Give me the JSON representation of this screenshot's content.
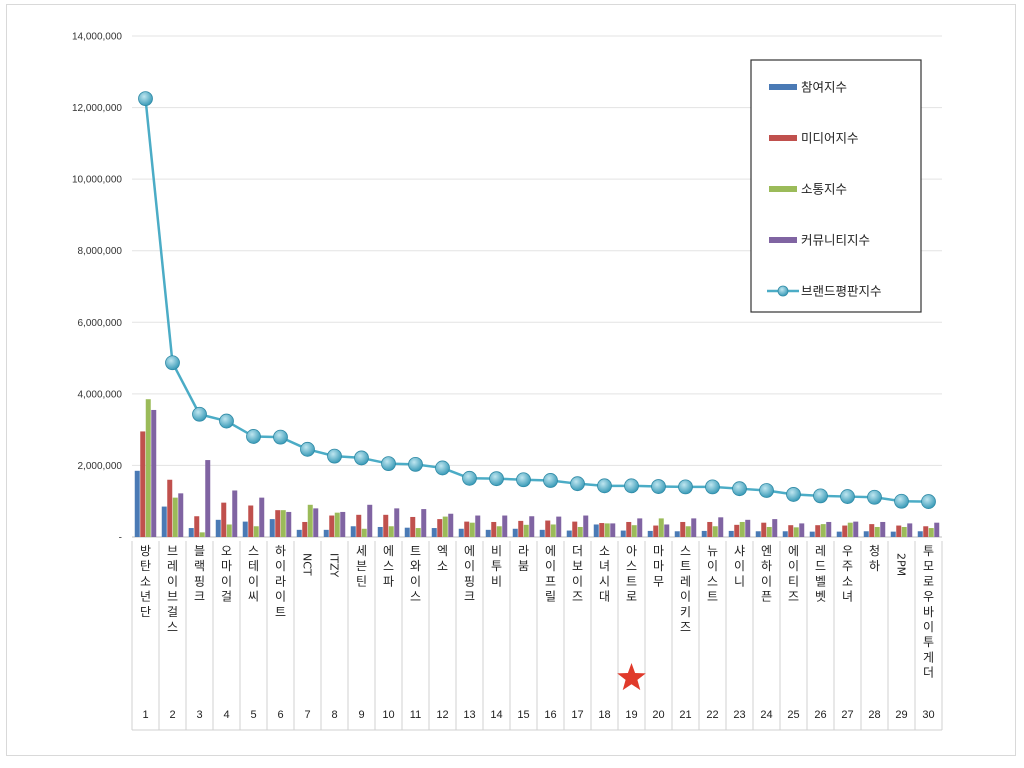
{
  "chart_data": {
    "type": "bar",
    "title": "",
    "xlabel": "",
    "ylabel": "",
    "ylim": [
      0,
      14000000
    ],
    "yticks": [
      0,
      2000000,
      4000000,
      6000000,
      8000000,
      10000000,
      12000000,
      14000000
    ],
    "ytick_labels": [
      "-",
      "2,000,000",
      "4,000,000",
      "6,000,000",
      "8,000,000",
      "10,000,000",
      "12,000,000",
      "14,000,000"
    ],
    "grid": true,
    "legend_position": "top-right",
    "categories": [
      "방탄소년단",
      "브레이브걸스",
      "블랙핑크",
      "오마이걸",
      "스테이씨",
      "하이라이트",
      "NCT",
      "ITZY",
      "세븐틴",
      "에스파",
      "트와이스",
      "엑소",
      "에이핑크",
      "비투비",
      "라붐",
      "에이프릴",
      "더보이즈",
      "소녀시대",
      "아스트로",
      "마마무",
      "스트레이키즈",
      "뉴이스트",
      "샤이니",
      "엔하이픈",
      "에이티즈",
      "레드벨벳",
      "우주소녀",
      "청하",
      "2PM",
      "투모로우바이투게더"
    ],
    "ranks": [
      "1",
      "2",
      "3",
      "4",
      "5",
      "6",
      "7",
      "8",
      "9",
      "10",
      "11",
      "12",
      "13",
      "14",
      "15",
      "16",
      "17",
      "18",
      "19",
      "20",
      "21",
      "22",
      "23",
      "24",
      "25",
      "26",
      "27",
      "28",
      "29",
      "30"
    ],
    "highlight_index": 18,
    "series": [
      {
        "name": "참여지수",
        "type": "bar",
        "color": "#4a7ab5",
        "values": [
          1850000,
          850000,
          250000,
          480000,
          430000,
          500000,
          200000,
          200000,
          300000,
          280000,
          260000,
          250000,
          230000,
          200000,
          230000,
          200000,
          180000,
          350000,
          180000,
          170000,
          160000,
          170000,
          170000,
          160000,
          160000,
          150000,
          150000,
          160000,
          150000,
          160000
        ]
      },
      {
        "name": "미디어지수",
        "type": "bar",
        "color": "#c0504d",
        "values": [
          2950000,
          1600000,
          580000,
          960000,
          880000,
          750000,
          420000,
          600000,
          620000,
          620000,
          560000,
          500000,
          430000,
          420000,
          450000,
          460000,
          430000,
          390000,
          420000,
          320000,
          420000,
          420000,
          340000,
          400000,
          330000,
          330000,
          320000,
          360000,
          320000,
          300000
        ]
      },
      {
        "name": "소통지수",
        "type": "bar",
        "color": "#9bbb59",
        "values": [
          3850000,
          1100000,
          130000,
          350000,
          300000,
          750000,
          900000,
          680000,
          230000,
          300000,
          250000,
          570000,
          400000,
          300000,
          340000,
          350000,
          280000,
          380000,
          330000,
          520000,
          300000,
          300000,
          420000,
          280000,
          270000,
          360000,
          400000,
          280000,
          280000,
          250000
        ]
      },
      {
        "name": "커뮤니티지수",
        "type": "bar",
        "color": "#8064a2",
        "values": [
          3550000,
          1220000,
          2150000,
          1300000,
          1100000,
          700000,
          800000,
          700000,
          900000,
          800000,
          780000,
          650000,
          600000,
          600000,
          580000,
          570000,
          600000,
          380000,
          520000,
          350000,
          520000,
          550000,
          480000,
          500000,
          380000,
          420000,
          430000,
          420000,
          380000,
          400000
        ]
      },
      {
        "name": "브랜드평판지수",
        "type": "line",
        "color": "#4bacc6",
        "values": [
          12250000,
          4870000,
          3430000,
          3240000,
          2810000,
          2790000,
          2450000,
          2260000,
          2210000,
          2050000,
          2030000,
          1930000,
          1640000,
          1630000,
          1600000,
          1580000,
          1490000,
          1430000,
          1430000,
          1410000,
          1400000,
          1400000,
          1350000,
          1300000,
          1190000,
          1150000,
          1130000,
          1110000,
          1000000,
          990000
        ]
      }
    ]
  }
}
